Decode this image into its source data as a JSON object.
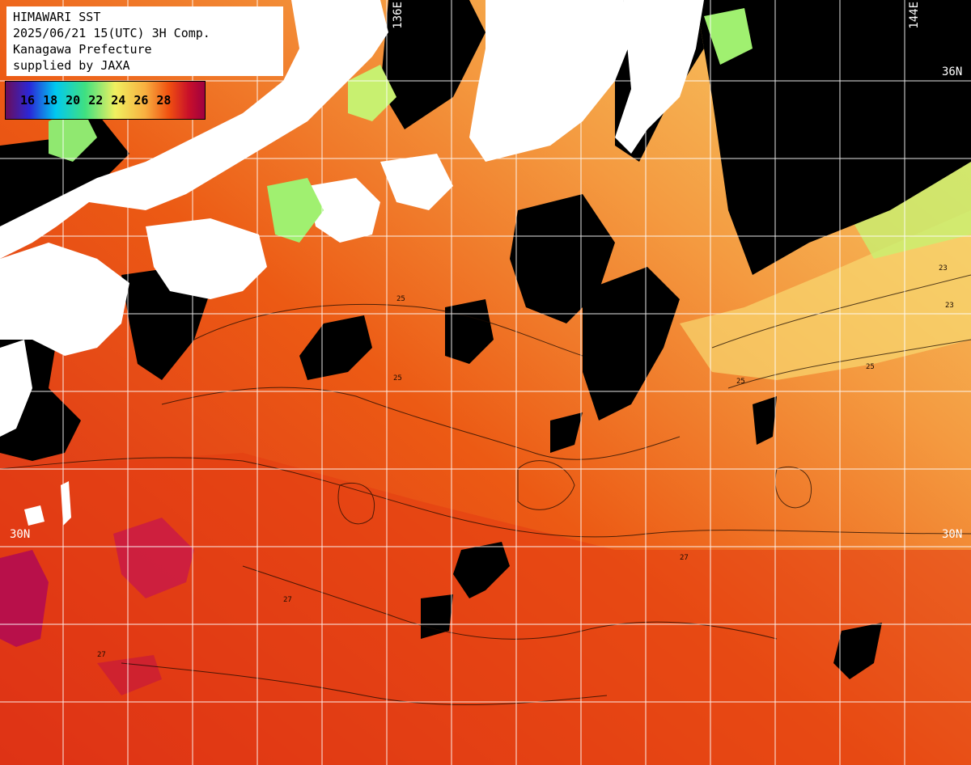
{
  "header": {
    "line1": "HIMAWARI SST",
    "line2": "2025/06/21 15(UTC) 3H Comp.",
    "line3": "Kanagawa Prefecture",
    "line4": "supplied by JAXA"
  },
  "legend": {
    "ticks": [
      "16",
      "18",
      "20",
      "22",
      "24",
      "26",
      "28"
    ],
    "colors": [
      "#6a0d5a",
      "#2a28d8",
      "#00c8f0",
      "#40e080",
      "#f0f060",
      "#f8b040",
      "#f05010",
      "#c8102a",
      "#a00040"
    ]
  },
  "grid_labels": {
    "lon_136": "136E",
    "lon_144": "144E",
    "lat_36": "36N",
    "lat_30_left": "30N",
    "lat_30_right": "30N"
  },
  "contour_labels": [
    "25",
    "25",
    "25",
    "25",
    "27",
    "27",
    "27",
    "23",
    "23"
  ],
  "colors": {
    "land": "#ffffff",
    "cloud": "#000000",
    "warm_sea": "#e84a10",
    "hot_sea": "#c81030",
    "mild_sea": "#f49a40",
    "cool_sea": "#f8d870",
    "cold_sea": "#a0f070",
    "grid": "#ffffff"
  }
}
